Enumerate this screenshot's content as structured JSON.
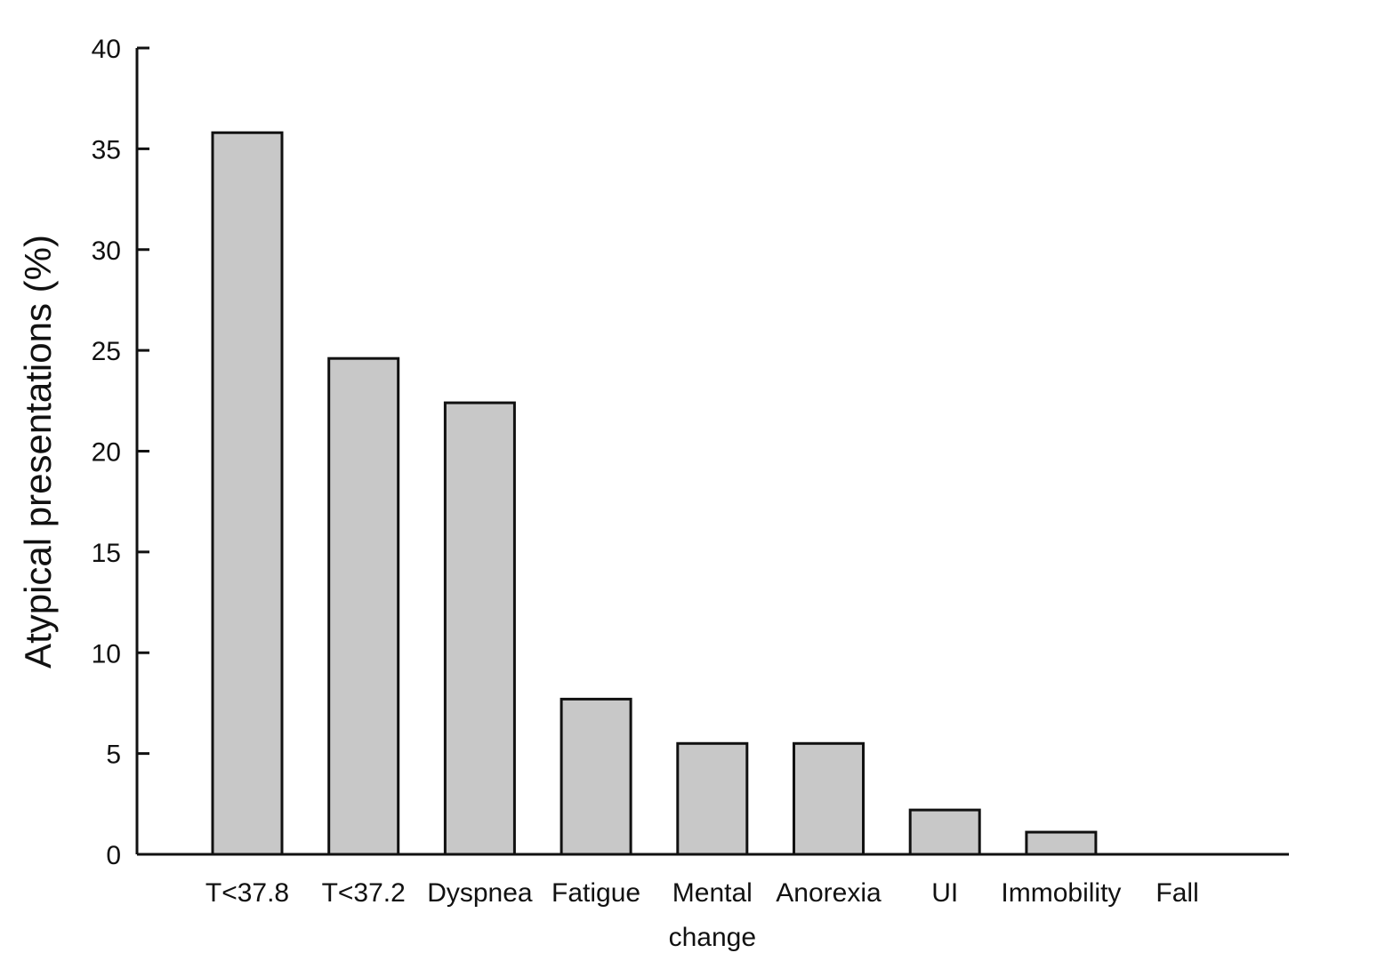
{
  "chart_data": {
    "type": "bar",
    "categories": [
      [
        "T<37.8"
      ],
      [
        "T<37.2"
      ],
      [
        "Dyspnea"
      ],
      [
        "Fatigue"
      ],
      [
        "Mental",
        "change"
      ],
      [
        "Anorexia"
      ],
      [
        "UI"
      ],
      [
        "Immobility"
      ],
      [
        "Fall"
      ]
    ],
    "values": [
      35.8,
      24.6,
      22.4,
      7.7,
      5.5,
      5.5,
      2.2,
      1.1,
      0
    ],
    "title": "",
    "xlabel": "",
    "ylabel": "Atypical presentations (%)",
    "ylim": [
      0,
      40
    ],
    "yticks": [
      0,
      5,
      10,
      15,
      20,
      25,
      30,
      35,
      40
    ],
    "grid": false,
    "legend": "none",
    "colors": {
      "bar_fill": "#c8c8c8",
      "bar_stroke": "#111111",
      "axis": "#111111"
    }
  }
}
